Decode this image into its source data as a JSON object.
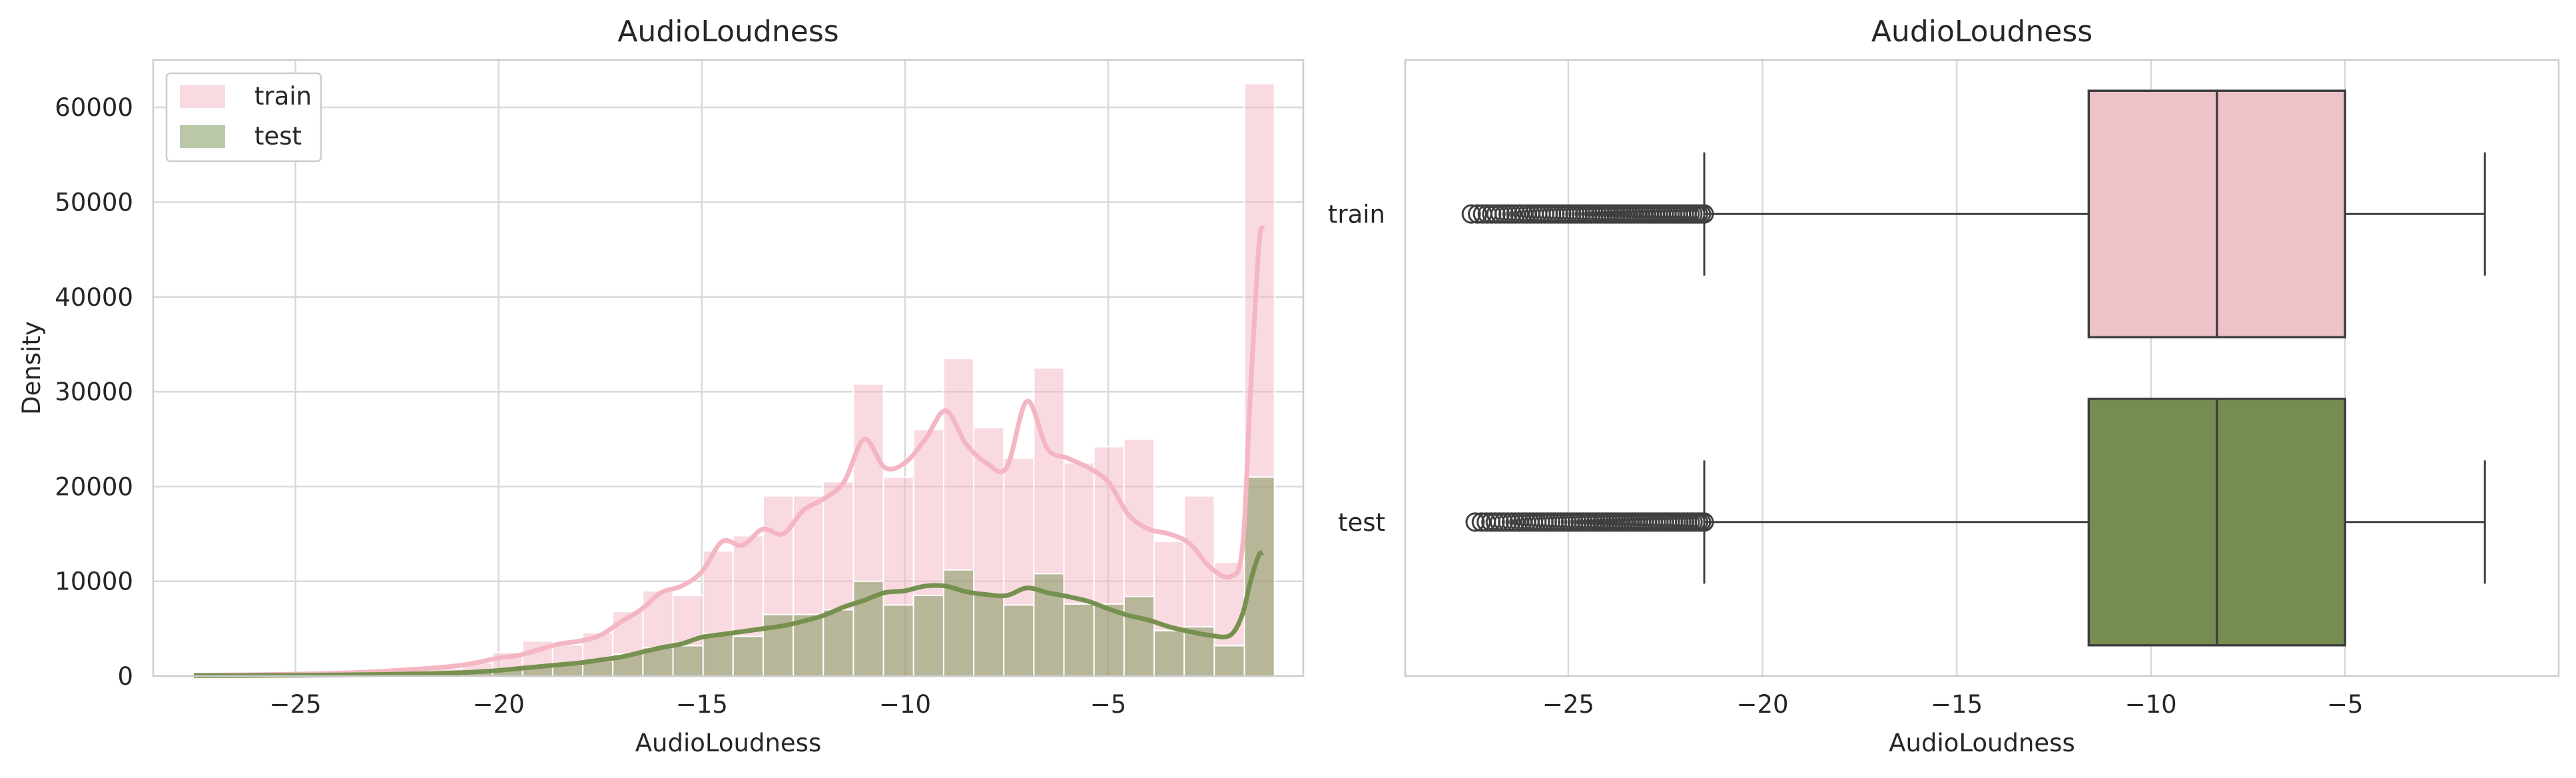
{
  "chart_data": [
    {
      "type": "bar",
      "subtype": "histogram-with-kde",
      "title": "AudioLoudness",
      "xlabel": "AudioLoudness",
      "ylabel": "Density",
      "xlim": [
        -28.5,
        -0.2
      ],
      "ylim": [
        0,
        65000
      ],
      "grid": true,
      "legend_position": "top-left",
      "x_ticks": [
        -25,
        -20,
        -15,
        -10,
        -5
      ],
      "x_tick_labels": [
        "−25",
        "−20",
        "−15",
        "−10",
        "−5"
      ],
      "y_ticks": [
        0,
        10000,
        20000,
        30000,
        40000,
        50000,
        60000
      ],
      "y_tick_labels": [
        "0",
        "10000",
        "20000",
        "30000",
        "40000",
        "50000",
        "60000"
      ],
      "bins": [
        -27.55,
        -26.81,
        -26.07,
        -25.33,
        -24.59,
        -23.85,
        -23.11,
        -22.37,
        -21.63,
        -20.89,
        -20.15,
        -19.41,
        -18.67,
        -17.93,
        -17.19,
        -16.45,
        -15.71,
        -14.97,
        -14.23,
        -13.49,
        -12.75,
        -12.01,
        -11.27,
        -10.53,
        -9.79,
        -9.05,
        -8.31,
        -7.57,
        -6.83,
        -6.09,
        -5.35,
        -4.61,
        -3.87,
        -3.13,
        -2.39,
        -1.65
      ],
      "series": [
        {
          "name": "train",
          "color": "#f4b6c2",
          "values": [
            30,
            40,
            60,
            80,
            120,
            180,
            300,
            500,
            800,
            1400,
            2500,
            3700,
            3300,
            4600,
            6800,
            9000,
            8500,
            13200,
            14800,
            19000,
            19000,
            20500,
            30800,
            21000,
            26000,
            33500,
            26200,
            23000,
            32500,
            22500,
            24200,
            25000,
            14200,
            19000,
            12000,
            62500
          ],
          "kde": [
            [
              -27.5,
              100
            ],
            [
              -26,
              150
            ],
            [
              -24,
              300
            ],
            [
              -22.5,
              600
            ],
            [
              -21,
              1100
            ],
            [
              -20,
              1900
            ],
            [
              -19.5,
              2200
            ],
            [
              -19,
              2800
            ],
            [
              -18.5,
              3400
            ],
            [
              -18,
              3700
            ],
            [
              -17.5,
              4300
            ],
            [
              -17,
              5700
            ],
            [
              -16.5,
              7000
            ],
            [
              -16,
              8800
            ],
            [
              -15.5,
              9500
            ],
            [
              -15,
              11000
            ],
            [
              -14.5,
              14200
            ],
            [
              -14,
              13800
            ],
            [
              -13.5,
              15500
            ],
            [
              -13,
              15000
            ],
            [
              -12.5,
              17500
            ],
            [
              -12,
              18700
            ],
            [
              -11.5,
              20500
            ],
            [
              -11,
              25000
            ],
            [
              -10.5,
              22000
            ],
            [
              -10,
              22500
            ],
            [
              -9.5,
              25000
            ],
            [
              -9,
              28000
            ],
            [
              -8.5,
              24500
            ],
            [
              -8,
              22500
            ],
            [
              -7.5,
              22000
            ],
            [
              -7,
              29000
            ],
            [
              -6.5,
              24000
            ],
            [
              -6,
              23000
            ],
            [
              -5.5,
              22000
            ],
            [
              -5,
              20500
            ],
            [
              -4.5,
              17000
            ],
            [
              -4,
              15500
            ],
            [
              -3.5,
              15000
            ],
            [
              -3,
              14000
            ],
            [
              -2.5,
              11500
            ],
            [
              -2,
              10500
            ],
            [
              -1.7,
              13500
            ],
            [
              -1.5,
              30000
            ],
            [
              -1.3,
              45000
            ],
            [
              -1.2,
              47500
            ]
          ]
        },
        {
          "name": "test",
          "color": "#76914f",
          "values": [
            10,
            15,
            20,
            30,
            40,
            60,
            90,
            150,
            250,
            420,
            700,
            1000,
            1200,
            1600,
            2300,
            3000,
            3200,
            4500,
            4200,
            6500,
            6500,
            7000,
            10000,
            7500,
            8500,
            11200,
            8600,
            7500,
            10800,
            7600,
            7600,
            8400,
            4800,
            5200,
            3200,
            21000
          ],
          "kde": [
            [
              -27.5,
              50
            ],
            [
              -26,
              70
            ],
            [
              -24,
              120
            ],
            [
              -22.5,
              200
            ],
            [
              -21,
              350
            ],
            [
              -20,
              600
            ],
            [
              -19.5,
              800
            ],
            [
              -19,
              1000
            ],
            [
              -18.5,
              1200
            ],
            [
              -18,
              1400
            ],
            [
              -17.5,
              1700
            ],
            [
              -17,
              2000
            ],
            [
              -16.5,
              2500
            ],
            [
              -16,
              3000
            ],
            [
              -15.5,
              3400
            ],
            [
              -15,
              4100
            ],
            [
              -14.5,
              4400
            ],
            [
              -14,
              4700
            ],
            [
              -13.5,
              5000
            ],
            [
              -13,
              5300
            ],
            [
              -12.5,
              5800
            ],
            [
              -12,
              6400
            ],
            [
              -11.5,
              7300
            ],
            [
              -11,
              8000
            ],
            [
              -10.5,
              8800
            ],
            [
              -10,
              9000
            ],
            [
              -9.5,
              9500
            ],
            [
              -9,
              9500
            ],
            [
              -8.5,
              8900
            ],
            [
              -8,
              8600
            ],
            [
              -7.5,
              8500
            ],
            [
              -7,
              9300
            ],
            [
              -6.5,
              8800
            ],
            [
              -6,
              8400
            ],
            [
              -5.5,
              7900
            ],
            [
              -5,
              7100
            ],
            [
              -4.5,
              6400
            ],
            [
              -4,
              5900
            ],
            [
              -3.5,
              5200
            ],
            [
              -3,
              4700
            ],
            [
              -2.5,
              4300
            ],
            [
              -2,
              4300
            ],
            [
              -1.7,
              6500
            ],
            [
              -1.5,
              10000
            ],
            [
              -1.3,
              12700
            ],
            [
              -1.2,
              13000
            ]
          ]
        }
      ]
    },
    {
      "type": "box",
      "title": "AudioLoudness",
      "xlabel": "AudioLoudness",
      "ylabel": "",
      "xlim": [
        -29.2,
        0.5
      ],
      "grid": true,
      "x_ticks": [
        -25,
        -20,
        -15,
        -10,
        -5
      ],
      "x_tick_labels": [
        "−25",
        "−20",
        "−15",
        "−10",
        "−5"
      ],
      "categories": [
        "train",
        "test"
      ],
      "series": [
        {
          "name": "train",
          "color": "#eec2c9",
          "whisker_low": -21.5,
          "q1": -11.6,
          "median": -8.3,
          "q3": -5.0,
          "whisker_high": -1.4,
          "outlier_range": [
            -27.5,
            -21.5
          ]
        },
        {
          "name": "test",
          "color": "#768c51",
          "whisker_low": -21.5,
          "q1": -11.6,
          "median": -8.3,
          "q3": -5.0,
          "whisker_high": -1.4,
          "outlier_range": [
            -27.4,
            -21.5
          ]
        }
      ]
    }
  ]
}
